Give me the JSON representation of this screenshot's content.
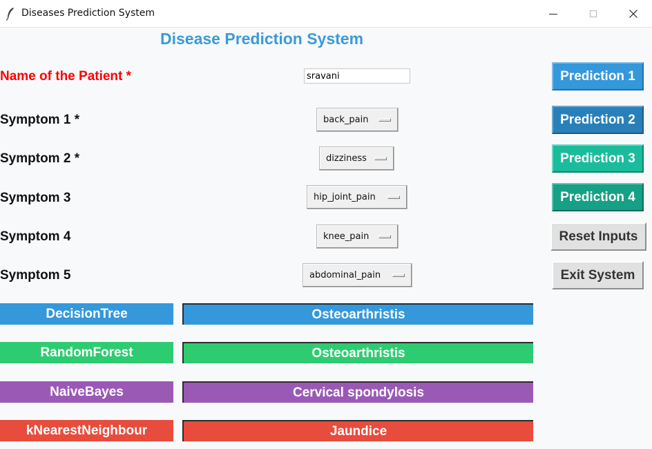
{
  "window": {
    "title": "Diseases Prediction System",
    "icon": "feather-icon",
    "controls": [
      "minimize-icon",
      "maximize-icon",
      "close-icon"
    ]
  },
  "heading": "Disease Prediction System",
  "form": {
    "name_label": "Name of the Patient *",
    "name_value": "sravani",
    "symptoms": [
      {
        "label": "Symptom 1 *",
        "value": "back_pain"
      },
      {
        "label": "Symptom 2 *",
        "value": "dizziness"
      },
      {
        "label": "Symptom 3",
        "value": "hip_joint_pain"
      },
      {
        "label": "Symptom 4",
        "value": "knee_pain"
      },
      {
        "label": "Symptom 5",
        "value": "abdominal_pain"
      }
    ]
  },
  "buttons": {
    "prediction_1": "Prediction 1",
    "prediction_2": "Prediction 2",
    "prediction_3": "Prediction 3",
    "prediction_4": "Prediction 4",
    "reset": "Reset Inputs",
    "exit": "Exit System"
  },
  "results": [
    {
      "algorithm": "DecisionTree",
      "prediction": "Osteoarthristis",
      "color": "#3498db"
    },
    {
      "algorithm": "RandomForest",
      "prediction": "Osteoarthristis",
      "color": "#2ecc71"
    },
    {
      "algorithm": "NaiveBayes",
      "prediction": "Cervical spondylosis",
      "color": "#9b59b6"
    },
    {
      "algorithm": "kNearestNeighbour",
      "prediction": "Jaundice",
      "color": "#e74c3c"
    }
  ],
  "colors": {
    "heading": "#3a9ad9",
    "required_label": "#ff0000",
    "prediction_1": "#3498db",
    "prediction_2": "#2980b9",
    "prediction_3": "#1abc9c",
    "prediction_4": "#16a085"
  }
}
